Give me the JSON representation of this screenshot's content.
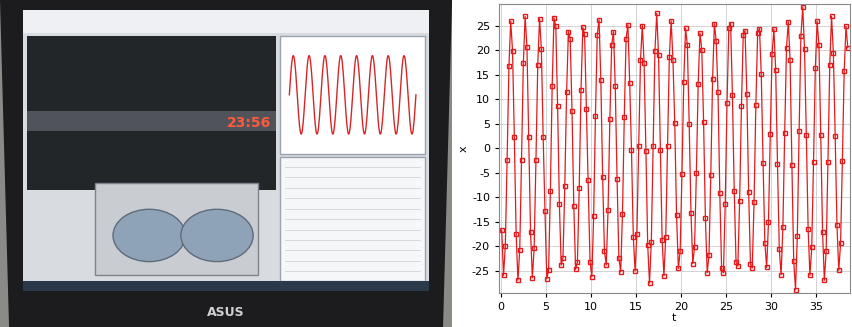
{
  "chart_data": {
    "type": "line",
    "x_label": "t",
    "y_label": "x",
    "x": [
      0.1,
      0.3,
      0.5,
      0.7,
      0.9,
      1.1,
      1.3,
      1.5,
      1.7,
      1.9,
      2.1,
      2.3,
      2.5,
      2.7,
      2.9,
      3.1,
      3.3,
      3.5,
      3.7,
      3.9,
      4.1,
      4.3,
      4.5,
      4.7,
      4.9,
      5.1,
      5.3,
      5.5,
      5.7,
      5.9,
      6.1,
      6.3,
      6.5,
      6.7,
      6.9,
      7.1,
      7.3,
      7.5,
      7.7,
      7.9,
      8.1,
      8.3,
      8.5,
      8.7,
      8.9,
      9.1,
      9.3,
      9.5,
      9.7,
      9.9,
      10.1,
      10.3,
      10.5,
      10.7,
      10.9,
      11.1,
      11.3,
      11.5,
      11.7,
      11.9,
      12.1,
      12.3,
      12.5,
      12.7,
      12.9,
      13.1,
      13.3,
      13.5,
      13.7,
      13.9,
      14.1,
      14.3,
      14.5,
      14.7,
      14.9,
      15.1,
      15.3,
      15.5,
      15.7,
      15.9,
      16.1,
      16.3,
      16.5,
      16.7,
      16.9,
      17.1,
      17.3,
      17.5,
      17.7,
      17.9,
      18.1,
      18.3,
      18.5,
      18.7,
      18.9,
      19.1,
      19.3,
      19.5,
      19.7,
      19.9,
      20.1,
      20.3,
      20.5,
      20.7,
      20.9,
      21.1,
      21.3,
      21.5,
      21.7,
      21.9,
      22.1,
      22.3,
      22.5,
      22.7,
      22.9,
      23.1,
      23.3,
      23.5,
      23.7,
      23.9,
      24.1,
      24.3,
      24.5,
      24.7,
      24.9,
      25.1,
      25.3,
      25.5,
      25.7,
      25.9,
      26.1,
      26.3,
      26.5,
      26.7,
      26.9,
      27.1,
      27.3,
      27.5,
      27.7,
      27.9,
      28.1,
      28.3,
      28.5,
      28.7,
      28.9,
      29.1,
      29.3,
      29.5,
      29.7,
      29.9,
      30.1,
      30.3,
      30.5,
      30.7,
      30.9,
      31.1,
      31.3,
      31.5,
      31.7,
      31.9,
      32.1,
      32.3,
      32.5,
      32.7,
      32.9,
      33.1,
      33.3,
      33.5,
      33.7,
      33.9,
      34.1,
      34.3,
      34.5,
      34.7,
      34.9,
      35.1,
      35.3,
      35.5,
      35.7,
      35.9,
      36.1,
      36.3,
      36.5,
      36.7,
      36.9,
      37.1,
      37.3,
      37.5,
      37.7,
      37.9,
      38.1,
      38.3,
      38.5
    ],
    "series": [
      {
        "color": "#e41a1c",
        "marker": "square",
        "line_style": "solid",
        "values": [
          -16.7,
          -25.9,
          -19.9,
          -2.3,
          16.7,
          25.9,
          19.9,
          2.3,
          -17.4,
          -26.9,
          -20.7,
          -2.3,
          17.4,
          26.9,
          20.7,
          2.3,
          -17.0,
          -26.4,
          -20.3,
          -2.3,
          17.0,
          26.4,
          20.3,
          2.3,
          -12.7,
          -26.6,
          -24.9,
          -8.7,
          12.7,
          26.6,
          24.9,
          8.7,
          -11.4,
          -23.8,
          -22.3,
          -7.7,
          11.4,
          23.8,
          22.3,
          7.7,
          -11.8,
          -24.7,
          -23.2,
          -8.0,
          11.8,
          24.7,
          23.2,
          8.0,
          -6.5,
          -23.1,
          -26.2,
          -13.9,
          6.5,
          23.1,
          26.2,
          13.9,
          -5.9,
          -21.0,
          -23.8,
          -12.6,
          5.9,
          21.0,
          23.8,
          12.6,
          -6.3,
          -22.3,
          -25.2,
          -13.4,
          6.3,
          22.3,
          25.2,
          13.4,
          -0.4,
          -18.0,
          -25.0,
          -17.4,
          0.4,
          18.0,
          25.0,
          17.4,
          -0.5,
          -19.8,
          -27.5,
          -19.1,
          0.5,
          19.8,
          27.5,
          19.1,
          -0.4,
          -18.7,
          -26.0,
          -18.1,
          0.4,
          18.7,
          26.0,
          18.1,
          5.2,
          -13.6,
          -24.5,
          -21.0,
          -5.2,
          13.6,
          24.5,
          21.0,
          5.0,
          -13.1,
          -23.5,
          -20.1,
          -5.0,
          13.1,
          23.5,
          20.1,
          5.4,
          -14.2,
          -25.4,
          -21.8,
          -5.4,
          14.2,
          25.4,
          21.8,
          11.4,
          -9.2,
          -24.5,
          -25.4,
          -11.4,
          9.2,
          24.5,
          25.4,
          10.8,
          -8.7,
          -23.1,
          -24.0,
          -10.8,
          8.7,
          23.1,
          24.0,
          11.0,
          -8.9,
          -23.6,
          -24.4,
          -11.0,
          8.9,
          23.6,
          24.4,
          15.1,
          -3.0,
          -19.3,
          -24.3,
          -15.1,
          3.0,
          19.3,
          24.3,
          16.0,
          -3.2,
          -20.5,
          -25.8,
          -16.0,
          3.2,
          20.5,
          25.8,
          17.9,
          -3.5,
          -22.9,
          -28.8,
          -17.9,
          3.5,
          22.9,
          28.8,
          20.2,
          2.7,
          -16.4,
          -25.9,
          -20.2,
          -2.7,
          16.4,
          25.9,
          21.0,
          2.8,
          -17.0,
          -26.9,
          -21.0,
          -2.8,
          17.0,
          26.9,
          19.4,
          2.6,
          -15.7,
          -24.9,
          -19.4,
          -2.6,
          15.7,
          24.9,
          20.5
        ]
      }
    ],
    "xlim": [
      -0.2,
      38.7
    ],
    "xticks": [
      0,
      5,
      10,
      15,
      20,
      25,
      30,
      35
    ],
    "ylim": [
      -29.5,
      29.5
    ],
    "yticks": [
      -25,
      -20,
      -15,
      -10,
      -5,
      0,
      5,
      10,
      15,
      20,
      25
    ],
    "grid": true
  },
  "photo": {
    "clock": "23:56",
    "brand": "ASUS"
  }
}
